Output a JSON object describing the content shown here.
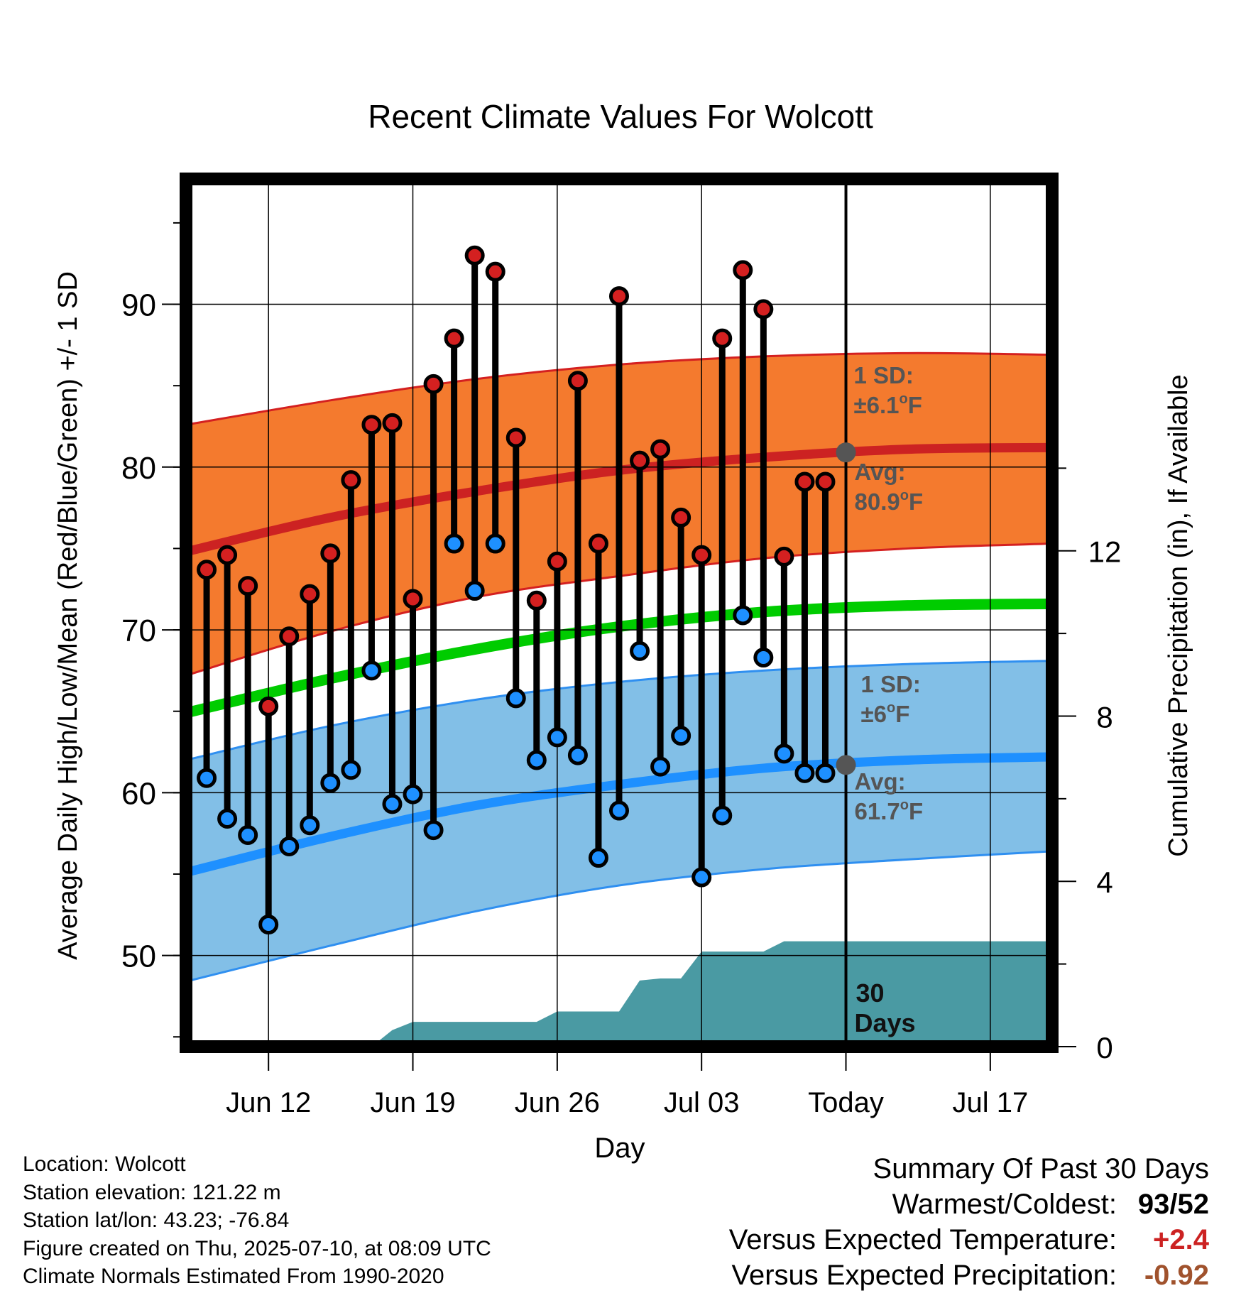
{
  "chart_data": {
    "type": "line",
    "title": "Recent Climate Values For Wolcott",
    "xlabel": "Day",
    "ylabel": "Average Daily High/Low/Mean (Red/Blue/Green) +/- 1 SD",
    "y2label": "Cumulative Precipitation (in), If Available",
    "ylim": [
      44.4,
      97.7
    ],
    "y2lim": [
      0,
      21.0
    ],
    "yticks": [
      "50",
      "60",
      "70",
      "80",
      "90"
    ],
    "y2ticks": [
      "0",
      "4",
      "8",
      "12"
    ],
    "xlim": [
      "2025-06-08",
      "2025-07-20"
    ],
    "xticks": [
      {
        "date": "2025-06-12",
        "label": "Jun 12"
      },
      {
        "date": "2025-06-19",
        "label": "Jun 19"
      },
      {
        "date": "2025-06-26",
        "label": "Jun 26"
      },
      {
        "date": "2025-07-03",
        "label": "Jul 03"
      },
      {
        "date": "2025-07-10",
        "label": "Today"
      },
      {
        "date": "2025-07-17",
        "label": "Jul 17"
      }
    ],
    "grid": true,
    "today": "2025-07-10",
    "dates": [
      "2025-06-09",
      "2025-06-10",
      "2025-06-11",
      "2025-06-12",
      "2025-06-13",
      "2025-06-14",
      "2025-06-15",
      "2025-06-16",
      "2025-06-17",
      "2025-06-18",
      "2025-06-19",
      "2025-06-20",
      "2025-06-21",
      "2025-06-22",
      "2025-06-23",
      "2025-06-24",
      "2025-06-25",
      "2025-06-26",
      "2025-06-27",
      "2025-06-28",
      "2025-06-29",
      "2025-06-30",
      "2025-07-01",
      "2025-07-02",
      "2025-07-03",
      "2025-07-04",
      "2025-07-05",
      "2025-07-06",
      "2025-07-07",
      "2025-07-08",
      "2025-07-09"
    ],
    "daily_high": [
      73.7,
      74.6,
      72.7,
      65.3,
      69.6,
      72.2,
      74.7,
      79.2,
      82.6,
      82.7,
      71.9,
      85.1,
      87.9,
      93.0,
      92.0,
      81.8,
      71.8,
      74.2,
      85.3,
      75.3,
      90.5,
      80.4,
      81.1,
      76.9,
      74.6,
      87.9,
      92.1,
      89.7,
      74.5,
      79.1,
      79.1
    ],
    "daily_low": [
      60.9,
      58.4,
      57.4,
      51.9,
      56.7,
      58.0,
      60.6,
      61.4,
      67.5,
      59.3,
      59.9,
      57.7,
      75.3,
      72.4,
      75.3,
      65.8,
      62.0,
      63.4,
      62.3,
      56.0,
      58.9,
      68.7,
      61.6,
      63.5,
      54.8,
      58.6,
      70.9,
      68.3,
      62.4,
      61.2,
      61.2
    ],
    "normal_high": {
      "x": [
        "2025-06-08",
        "2025-06-15",
        "2025-06-22",
        "2025-06-29",
        "2025-07-06",
        "2025-07-13",
        "2025-07-20"
      ],
      "avg": [
        74.8,
        76.9,
        78.5,
        79.8,
        80.6,
        81.1,
        81.2
      ],
      "upper": [
        82.6,
        84.1,
        85.4,
        86.3,
        86.8,
        87.0,
        86.9
      ],
      "lower": [
        67.2,
        69.9,
        72.0,
        73.3,
        74.4,
        75.0,
        75.3
      ]
    },
    "normal_mean": {
      "x": [
        "2025-06-08",
        "2025-06-15",
        "2025-06-22",
        "2025-06-29",
        "2025-07-06",
        "2025-07-13",
        "2025-07-20"
      ],
      "avg": [
        64.9,
        67.0,
        68.8,
        70.2,
        71.1,
        71.5,
        71.6
      ]
    },
    "normal_low": {
      "x": [
        "2025-06-08",
        "2025-06-15",
        "2025-06-22",
        "2025-06-29",
        "2025-07-06",
        "2025-07-13",
        "2025-07-20"
      ],
      "avg": [
        55.1,
        57.3,
        59.2,
        60.5,
        61.5,
        62.0,
        62.2
      ],
      "upper": [
        62.0,
        64.1,
        65.7,
        66.8,
        67.5,
        67.9,
        68.1
      ],
      "lower": [
        48.4,
        50.6,
        52.7,
        54.3,
        55.3,
        55.9,
        56.4
      ]
    },
    "precip_cumulative": {
      "x": [
        "2025-06-17",
        "2025-06-18",
        "2025-06-19",
        "2025-06-25",
        "2025-06-26",
        "2025-06-29",
        "2025-06-30",
        "2025-07-01",
        "2025-07-02",
        "2025-07-03",
        "2025-07-06",
        "2025-07-07",
        "2025-07-20"
      ],
      "y": [
        0.0,
        0.4,
        0.6,
        0.6,
        0.85,
        0.85,
        1.6,
        1.65,
        1.65,
        2.3,
        2.3,
        2.55,
        2.55
      ]
    },
    "colors": {
      "high": "#cc2222",
      "low": "#1e90ff",
      "mean": "#00cc00",
      "high_band": "#f47a2e",
      "low_band": "#82bfe7",
      "precip": "#4a9aa3",
      "annotation": "#555555"
    },
    "annotations": {
      "high_sd": {
        "line1": "1 SD:",
        "line2": "±6.1",
        "unit": "F"
      },
      "high_avg": {
        "line1": "Avg:",
        "line2": "80.9",
        "unit": "F",
        "value": 80.9
      },
      "low_sd": {
        "line1": "1 SD:",
        "line2": "±6",
        "unit": "F"
      },
      "low_avg": {
        "line1": "Avg:",
        "line2": "61.7",
        "unit": "F",
        "value": 61.7
      },
      "window_line1": "30",
      "window_line2": "Days",
      "degree": "o"
    }
  },
  "info": {
    "location": "Location: Wolcott",
    "elevation": "Station elevation: 121.22 m",
    "latlon": "Station lat/lon: 43.23; -76.84",
    "created": "Figure created on Thu, 2025-07-10, at 08:09 UTC",
    "normals": "Climate Normals Estimated From 1990-2020"
  },
  "summary": {
    "title": "Summary Of Past 30 Days",
    "warm_cold_label": "Warmest/Coldest:",
    "warm_value": "93",
    "slash": "/",
    "cold_value": "52",
    "temp_label": "Versus Expected Temperature:",
    "temp_value": "+2.4",
    "temp_color": "#cc2222",
    "precip_label": "Versus Expected Precipitation:",
    "precip_value": "-0.92",
    "precip_color": "#a0522d"
  }
}
